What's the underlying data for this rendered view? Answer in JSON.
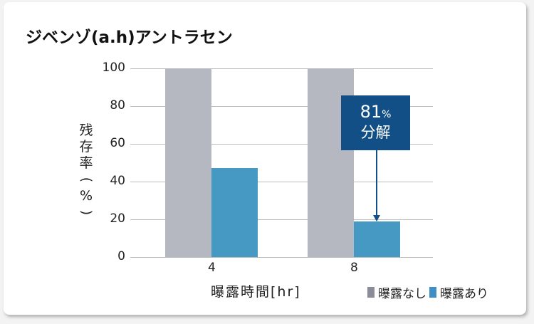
{
  "title": "ジベンゾ(a.h)アントラセン",
  "y_axis": {
    "label_chars": [
      "残",
      "存",
      "率",
      "(",
      "%",
      ")"
    ],
    "ticks": [
      "100",
      "80",
      "60",
      "40",
      "20",
      "0"
    ]
  },
  "x_axis": {
    "label": "曝露時間[hr]",
    "ticks": [
      "4",
      "8"
    ]
  },
  "callout": {
    "value": "81",
    "unit": "%",
    "text": "分解"
  },
  "legend": [
    {
      "label": "曝露なし",
      "color": "#8a8d98"
    },
    {
      "label": "曝露あり",
      "color": "#3f8fc4"
    }
  ],
  "colors": {
    "unexposed_bar": "#b5b8c1",
    "exposed_bar": "#4599c2",
    "callout": "#124f86"
  },
  "chart_data": {
    "type": "bar",
    "title": "ジベンゾ(a.h)アントラセン",
    "categories": [
      "4",
      "8"
    ],
    "series": [
      {
        "name": "曝露なし",
        "values": [
          100,
          100
        ]
      },
      {
        "name": "曝露あり",
        "values": [
          47,
          19
        ]
      }
    ],
    "xlabel": "曝露時間[hr]",
    "ylabel": "残存率(%)",
    "ylim": [
      0,
      100
    ],
    "yticks": [
      0,
      20,
      40,
      60,
      80,
      100
    ],
    "grid": true,
    "legend_position": "bottom-right",
    "annotations": [
      {
        "text": "81% 分解",
        "target": {
          "category": "8",
          "series": "曝露あり"
        }
      }
    ]
  }
}
